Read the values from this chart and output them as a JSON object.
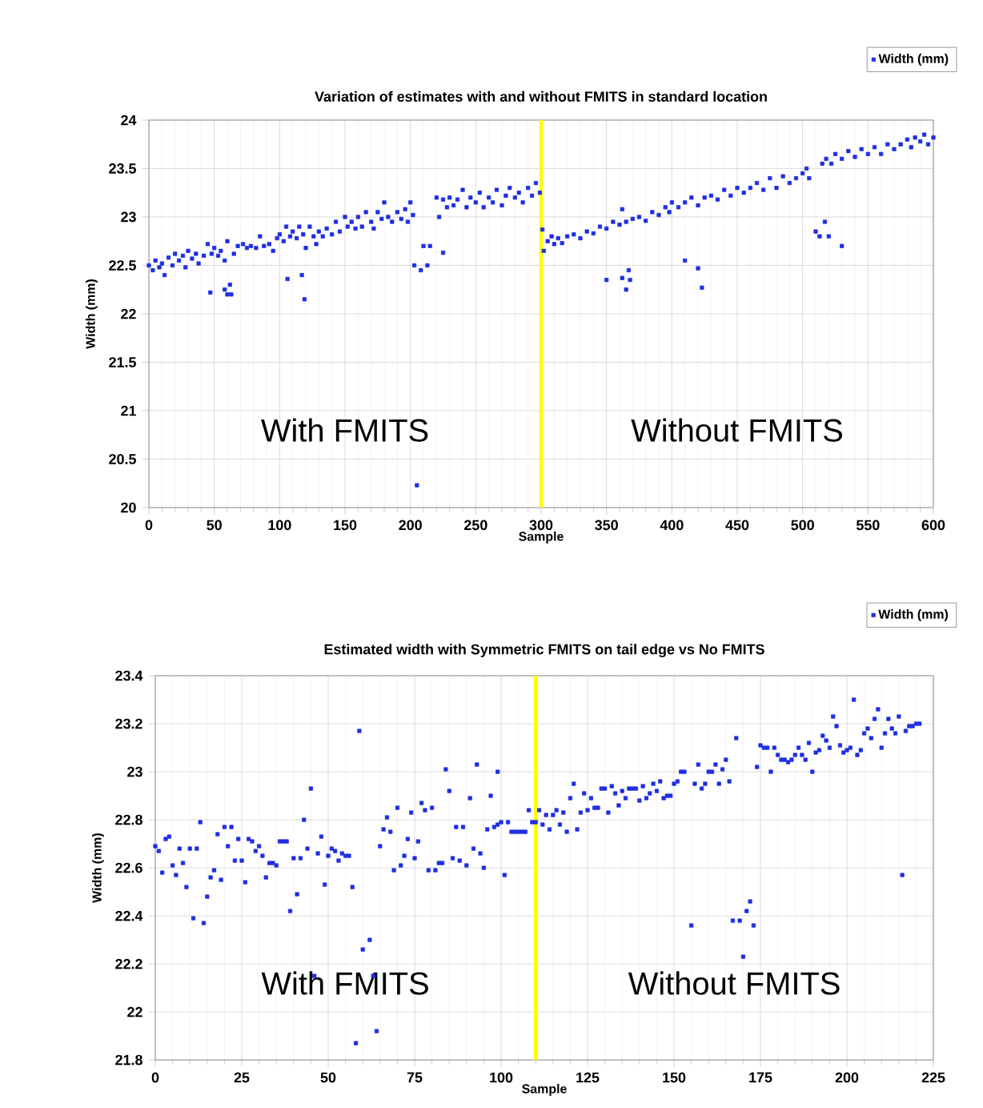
{
  "chart_data": [
    {
      "type": "scatter",
      "title": "Variation of estimates with and without FMITS in standard location",
      "xlabel": "Sample",
      "ylabel": "Width (mm)",
      "xlim": [
        0,
        600
      ],
      "ylim": [
        20,
        24
      ],
      "xticks": [
        0,
        50,
        100,
        150,
        200,
        250,
        300,
        350,
        400,
        450,
        500,
        550,
        600
      ],
      "yticks": [
        20,
        20.5,
        21,
        21.5,
        22,
        22.5,
        23,
        23.5,
        24
      ],
      "grid": true,
      "legend": "top right",
      "marker": "square",
      "annotations": [
        "With FMITS",
        "Without FMITS"
      ],
      "ref_lines": [
        {
          "axis": "x",
          "value": 300,
          "color": "#ffff00"
        }
      ],
      "series": [
        {
          "name": "Width (mm)",
          "color": "#1f2fe0",
          "x": [
            0,
            3,
            5,
            8,
            10,
            12,
            15,
            18,
            20,
            23,
            26,
            28,
            30,
            33,
            36,
            38,
            42,
            45,
            47,
            48,
            50,
            53,
            55,
            58,
            58,
            60,
            60,
            62,
            63,
            65,
            68,
            72,
            75,
            78,
            82,
            85,
            88,
            92,
            95,
            98,
            100,
            103,
            105,
            106,
            108,
            110,
            113,
            115,
            117,
            118,
            119,
            120,
            123,
            126,
            128,
            130,
            133,
            136,
            140,
            143,
            146,
            150,
            152,
            155,
            158,
            160,
            163,
            166,
            170,
            172,
            175,
            178,
            180,
            183,
            186,
            190,
            193,
            196,
            198,
            200,
            202,
            203,
            205,
            208,
            210,
            213,
            215,
            220,
            222,
            225,
            225,
            228,
            230,
            233,
            236,
            240,
            243,
            246,
            250,
            253,
            256,
            260,
            263,
            266,
            270,
            273,
            276,
            280,
            283,
            286,
            290,
            293,
            296,
            299,
            301,
            302,
            305,
            308,
            310,
            313,
            316,
            320,
            325,
            330,
            335,
            340,
            345,
            350,
            350,
            355,
            360,
            362,
            362,
            365,
            365,
            367,
            368,
            370,
            375,
            380,
            385,
            390,
            395,
            398,
            400,
            405,
            410,
            410,
            415,
            420,
            420,
            423,
            425,
            430,
            435,
            440,
            445,
            450,
            455,
            460,
            465,
            470,
            475,
            480,
            485,
            490,
            495,
            500,
            503,
            505,
            510,
            513,
            515,
            517,
            518,
            520,
            522,
            525,
            530,
            530,
            535,
            540,
            545,
            550,
            555,
            560,
            565,
            570,
            575,
            580,
            583,
            586,
            590,
            593,
            596,
            600
          ],
          "values": [
            22.5,
            22.45,
            22.55,
            22.48,
            22.52,
            22.4,
            22.58,
            22.5,
            22.62,
            22.55,
            22.6,
            22.48,
            22.65,
            22.57,
            22.62,
            22.52,
            22.6,
            22.72,
            22.22,
            22.62,
            22.68,
            22.6,
            22.65,
            22.55,
            22.25,
            22.75,
            22.2,
            22.3,
            22.2,
            22.62,
            22.7,
            22.72,
            22.68,
            22.7,
            22.68,
            22.8,
            22.7,
            22.72,
            22.65,
            22.78,
            22.82,
            22.75,
            22.9,
            22.36,
            22.8,
            22.85,
            22.78,
            22.9,
            22.4,
            22.82,
            22.15,
            22.68,
            22.9,
            22.8,
            22.72,
            22.85,
            22.8,
            22.88,
            22.82,
            22.95,
            22.85,
            23.0,
            22.9,
            22.95,
            22.88,
            23.0,
            22.9,
            23.05,
            22.95,
            22.88,
            23.05,
            22.98,
            23.15,
            23.0,
            22.95,
            23.05,
            22.98,
            23.08,
            22.95,
            23.15,
            23.02,
            22.5,
            20.23,
            22.45,
            22.7,
            22.5,
            22.7,
            23.2,
            23.0,
            23.18,
            22.63,
            23.1,
            23.2,
            23.12,
            23.18,
            23.28,
            23.1,
            23.2,
            23.15,
            23.25,
            23.1,
            23.2,
            23.15,
            23.28,
            23.12,
            23.22,
            23.3,
            23.2,
            23.25,
            23.15,
            23.3,
            23.22,
            23.35,
            23.25,
            22.87,
            22.65,
            22.75,
            22.8,
            22.72,
            22.78,
            22.73,
            22.8,
            22.82,
            22.78,
            22.85,
            22.83,
            22.9,
            22.88,
            22.35,
            22.95,
            22.92,
            23.08,
            22.37,
            22.95,
            22.25,
            22.45,
            22.35,
            22.98,
            23.0,
            22.96,
            23.05,
            23.02,
            23.1,
            23.05,
            23.15,
            23.1,
            23.15,
            22.55,
            23.2,
            23.12,
            22.47,
            22.27,
            23.2,
            23.22,
            23.18,
            23.28,
            23.22,
            23.3,
            23.25,
            23.3,
            23.35,
            23.28,
            23.4,
            23.3,
            23.42,
            23.35,
            23.4,
            23.45,
            23.5,
            23.4,
            22.85,
            22.8,
            23.55,
            22.95,
            23.6,
            22.8,
            23.55,
            23.65,
            23.6,
            22.7,
            23.68,
            23.62,
            23.7,
            23.65,
            23.72,
            23.65,
            23.75,
            23.7,
            23.75,
            23.8,
            23.72,
            23.82,
            23.78,
            23.85,
            23.75,
            23.82
          ]
        }
      ]
    },
    {
      "type": "scatter",
      "title": "Estimated width with Symmetric FMITS on tail edge vs No FMITS",
      "xlabel": "Sample",
      "ylabel": "Width (mm)",
      "xlim": [
        0,
        225
      ],
      "ylim": [
        21.8,
        23.4
      ],
      "xticks": [
        0,
        25,
        50,
        75,
        100,
        125,
        150,
        175,
        200,
        225
      ],
      "yticks": [
        21.8,
        22,
        22.2,
        22.4,
        22.6,
        22.8,
        23,
        23.2,
        23.4
      ],
      "grid": true,
      "legend": "top right",
      "marker": "square",
      "annotations": [
        "With FMITS",
        "Without FMITS"
      ],
      "ref_lines": [
        {
          "axis": "x",
          "value": 110,
          "color": "#ffff00"
        }
      ],
      "series": [
        {
          "name": "Width (mm)",
          "color": "#1f2fe0",
          "x": [
            0,
            1,
            2,
            3,
            4,
            5,
            6,
            7,
            8,
            9,
            10,
            11,
            12,
            13,
            14,
            15,
            16,
            17,
            18,
            19,
            20,
            21,
            22,
            23,
            24,
            25,
            26,
            27,
            28,
            29,
            30,
            31,
            32,
            33,
            34,
            35,
            36,
            37,
            38,
            39,
            40,
            41,
            42,
            43,
            44,
            45,
            46,
            47,
            48,
            49,
            50,
            51,
            52,
            53,
            54,
            55,
            56,
            57,
            58,
            59,
            60,
            62,
            63,
            64,
            65,
            66,
            67,
            68,
            69,
            70,
            71,
            72,
            73,
            74,
            75,
            76,
            77,
            78,
            79,
            80,
            81,
            82,
            83,
            84,
            85,
            86,
            87,
            88,
            89,
            90,
            91,
            92,
            93,
            94,
            95,
            96,
            97,
            98,
            99,
            99,
            100,
            101,
            102,
            103,
            104,
            105,
            106,
            107,
            108,
            109,
            110,
            111,
            112,
            113,
            114,
            115,
            116,
            117,
            118,
            119,
            120,
            121,
            122,
            123,
            124,
            125,
            126,
            127,
            128,
            129,
            130,
            131,
            132,
            133,
            134,
            135,
            136,
            137,
            138,
            139,
            140,
            141,
            142,
            143,
            144,
            145,
            146,
            147,
            148,
            149,
            150,
            151,
            152,
            153,
            155,
            156,
            157,
            158,
            159,
            160,
            161,
            162,
            163,
            164,
            165,
            166,
            167,
            168,
            169,
            170,
            171,
            172,
            173,
            174,
            175,
            176,
            177,
            178,
            179,
            180,
            181,
            182,
            183,
            184,
            185,
            186,
            187,
            188,
            189,
            190,
            191,
            192,
            193,
            194,
            195,
            196,
            197,
            198,
            199,
            200,
            201,
            202,
            203,
            204,
            205,
            206,
            207,
            208,
            209,
            210,
            211,
            212,
            213,
            214,
            215,
            216,
            217,
            218,
            219,
            220,
            221
          ],
          "values": [
            22.69,
            22.67,
            22.58,
            22.72,
            22.73,
            22.61,
            22.57,
            22.68,
            22.62,
            22.52,
            22.68,
            22.39,
            22.68,
            22.79,
            22.37,
            22.48,
            22.56,
            22.59,
            22.74,
            22.55,
            22.77,
            22.69,
            22.77,
            22.63,
            22.72,
            22.63,
            22.54,
            22.72,
            22.71,
            22.67,
            22.69,
            22.65,
            22.56,
            22.62,
            22.62,
            22.61,
            22.71,
            22.71,
            22.71,
            22.42,
            22.64,
            22.49,
            22.64,
            22.8,
            22.68,
            22.93,
            22.15,
            22.66,
            22.73,
            22.53,
            22.65,
            22.68,
            22.67,
            22.63,
            22.66,
            22.65,
            22.65,
            22.52,
            21.87,
            23.17,
            22.26,
            22.3,
            22.15,
            21.92,
            22.69,
            22.76,
            22.81,
            22.75,
            22.59,
            22.85,
            22.61,
            22.65,
            22.72,
            22.83,
            22.64,
            22.71,
            22.87,
            22.84,
            22.59,
            22.85,
            22.59,
            22.62,
            22.62,
            23.01,
            22.92,
            22.64,
            22.77,
            22.63,
            22.77,
            22.61,
            22.89,
            22.68,
            23.03,
            22.66,
            22.6,
            22.76,
            22.9,
            22.77,
            22.78,
            23.0,
            22.79,
            22.57,
            22.79,
            22.75,
            22.75,
            22.75,
            22.75,
            22.75,
            22.84,
            22.79,
            22.79,
            22.84,
            22.78,
            22.82,
            22.76,
            22.82,
            22.84,
            22.78,
            22.83,
            22.75,
            22.89,
            22.95,
            22.76,
            22.83,
            22.91,
            22.84,
            22.89,
            22.85,
            22.85,
            22.93,
            22.93,
            22.83,
            22.94,
            22.91,
            22.86,
            22.92,
            22.89,
            22.93,
            22.93,
            22.93,
            22.88,
            22.94,
            22.89,
            22.91,
            22.95,
            22.92,
            22.96,
            22.89,
            22.9,
            22.9,
            22.95,
            22.96,
            23.0,
            23.0,
            22.36,
            22.95,
            23.03,
            22.93,
            22.95,
            23.0,
            23.0,
            23.03,
            22.95,
            23.01,
            23.05,
            22.96,
            22.38,
            23.14,
            22.38,
            22.23,
            22.42,
            22.46,
            22.36,
            23.02,
            23.11,
            23.1,
            23.1,
            23.0,
            23.1,
            23.07,
            23.05,
            23.05,
            23.04,
            23.05,
            23.07,
            23.1,
            23.07,
            23.05,
            23.12,
            23.0,
            23.08,
            23.09,
            23.15,
            23.13,
            23.1,
            23.23,
            23.19,
            23.11,
            23.08,
            23.09,
            23.1,
            23.3,
            23.07,
            23.09,
            23.16,
            23.18,
            23.14,
            23.22,
            23.26,
            23.1,
            23.16,
            23.22,
            23.18,
            23.16,
            23.23,
            22.57,
            23.17,
            23.19,
            23.19,
            23.2,
            23.2
          ]
        }
      ]
    }
  ]
}
